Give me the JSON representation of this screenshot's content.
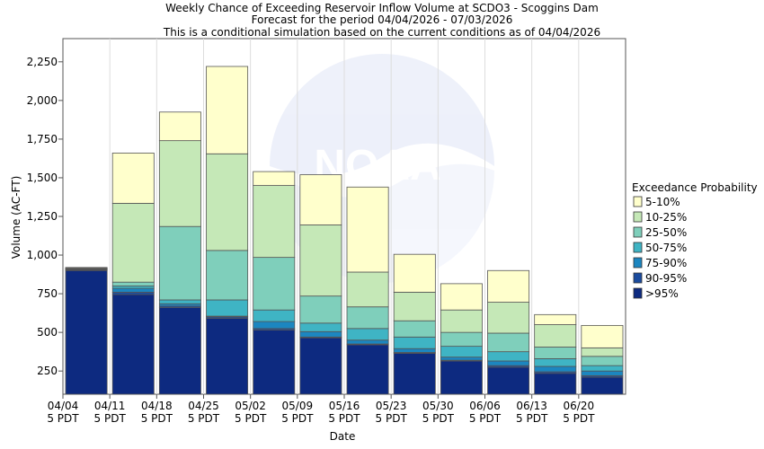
{
  "chart_data": {
    "type": "bar",
    "stacked": true,
    "title": [
      "Weekly Chance of Exceeding Reservoir Inflow Volume at SCDO3 - Scoggins Dam",
      "Forecast for the period 04/04/2026 - 07/03/2026",
      "This is a conditional simulation based on the current conditions as of 04/04/2026"
    ],
    "xlabel": "Date",
    "ylabel": "Volume (AC-FT)",
    "ylim": [
      100,
      2400
    ],
    "yticks": [
      250,
      500,
      750,
      1000,
      1250,
      1500,
      1750,
      2000,
      2250
    ],
    "ytick_labels": [
      "250",
      "500",
      "750",
      "1,000",
      "1,250",
      "1,500",
      "1,750",
      "2,000",
      "2,250"
    ],
    "xtick_labels": [
      [
        "04/04",
        "5 PDT"
      ],
      [
        "04/11",
        "5 PDT"
      ],
      [
        "04/18",
        "5 PDT"
      ],
      [
        "04/25",
        "5 PDT"
      ],
      [
        "05/02",
        "5 PDT"
      ],
      [
        "05/09",
        "5 PDT"
      ],
      [
        "05/16",
        "5 PDT"
      ],
      [
        "05/23",
        "5 PDT"
      ],
      [
        "05/30",
        "5 PDT"
      ],
      [
        "06/06",
        "5 PDT"
      ],
      [
        "06/13",
        "5 PDT"
      ],
      [
        "06/20",
        "5 PDT"
      ]
    ],
    "watermark": "NOAA",
    "legend": {
      "title": "Exceedance Probability",
      "position": "right",
      "entries": [
        "5-10%",
        "10-25%",
        "25-50%",
        "50-75%",
        "75-90%",
        "90-95%",
        ">95%"
      ]
    },
    "layer_colors": [
      "#0d2a80",
      "#1a4b9e",
      "#1c86c0",
      "#3fb4c4",
      "#7fcfbb",
      "#c5e8b7",
      "#ffffcc"
    ],
    "layer_names": [
      ">95%",
      "90-95%",
      "75-90%",
      "50-75%",
      "25-50%",
      "10-25%",
      "5-10%"
    ],
    "bars": [
      [
        900,
        905,
        908,
        910,
        912,
        915,
        920
      ],
      [
        745,
        760,
        785,
        800,
        825,
        1335,
        1660
      ],
      [
        660,
        670,
        685,
        710,
        1185,
        1740,
        1925
      ],
      [
        590,
        600,
        605,
        710,
        1030,
        1655,
        2220
      ],
      [
        515,
        525,
        570,
        645,
        985,
        1450,
        1540
      ],
      [
        465,
        470,
        505,
        560,
        735,
        1195,
        1520
      ],
      [
        420,
        425,
        450,
        525,
        665,
        890,
        1440
      ],
      [
        365,
        370,
        395,
        470,
        575,
        760,
        1005
      ],
      [
        315,
        320,
        340,
        410,
        500,
        645,
        815
      ],
      [
        275,
        285,
        315,
        375,
        495,
        695,
        900
      ],
      [
        235,
        245,
        280,
        330,
        405,
        550,
        615
      ],
      [
        210,
        220,
        250,
        285,
        345,
        400,
        545
      ]
    ]
  }
}
